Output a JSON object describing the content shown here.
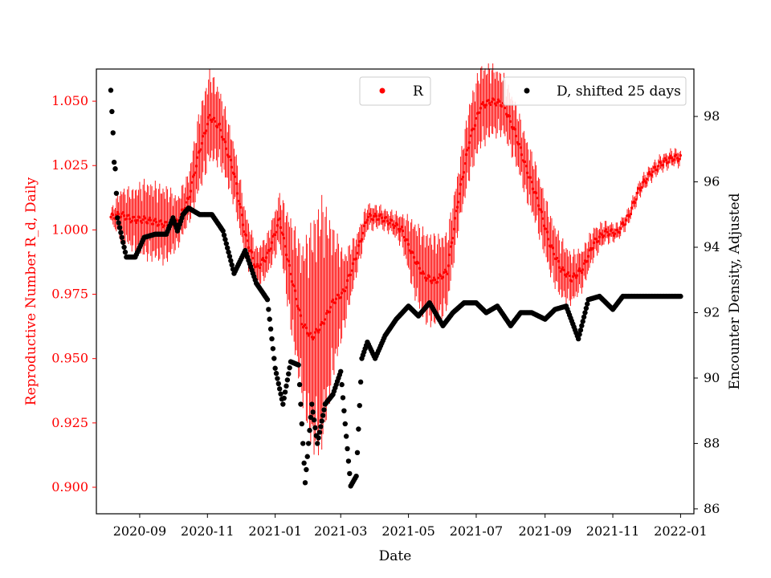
{
  "chart_data": {
    "type": "scatter",
    "title": "",
    "xlabel": "Date",
    "ylabel_left": "Reproductive Number R_d, Daily",
    "ylabel_right": "Encounter Density, Adjusted",
    "x_ticks": [
      "2020-09",
      "2020-11",
      "2021-01",
      "2021-03",
      "2021-05",
      "2021-07",
      "2021-09",
      "2021-11",
      "2022-01"
    ],
    "x_range": [
      "2020-07-24",
      "2022-01-13"
    ],
    "y_left_ticks": [
      "0.900",
      "0.925",
      "0.950",
      "0.975",
      "1.000",
      "1.025",
      "1.050"
    ],
    "y_left_range": [
      0.8897,
      1.0625
    ],
    "y_right_ticks": [
      "86",
      "88",
      "90",
      "92",
      "94",
      "96",
      "98"
    ],
    "y_right_range": [
      85.85,
      99.45
    ],
    "grid": false,
    "colors": {
      "R": "#ff0000",
      "D": "#000000",
      "left_axis": "#ff0000",
      "right_axis": "#000000"
    },
    "series": [
      {
        "name": "R",
        "axis": "left",
        "marker": "point with vertical error bar",
        "color": "#ff0000",
        "x": [
          "2020-08-06",
          "2020-08-15",
          "2020-08-25",
          "2020-09-05",
          "2020-09-15",
          "2020-09-25",
          "2020-10-05",
          "2020-10-15",
          "2020-10-25",
          "2020-11-03",
          "2020-11-12",
          "2020-11-25",
          "2020-12-05",
          "2020-12-15",
          "2020-12-25",
          "2021-01-05",
          "2021-01-15",
          "2021-01-25",
          "2021-02-03",
          "2021-02-12",
          "2021-02-22",
          "2021-03-04",
          "2021-03-15",
          "2021-03-25",
          "2021-04-05",
          "2021-04-15",
          "2021-04-25",
          "2021-05-05",
          "2021-05-15",
          "2021-05-25",
          "2021-06-05",
          "2021-06-15",
          "2021-06-25",
          "2021-07-05",
          "2021-07-15",
          "2021-07-25",
          "2021-08-05",
          "2021-08-15",
          "2021-08-25",
          "2021-09-05",
          "2021-09-15",
          "2021-09-25",
          "2021-10-05",
          "2021-10-15",
          "2021-10-25",
          "2021-11-05",
          "2021-11-15",
          "2021-11-25",
          "2021-12-05",
          "2021-12-15",
          "2021-12-25",
          "2022-01-01"
        ],
        "values": [
          1.005,
          1.006,
          1.004,
          1.004,
          1.003,
          1.002,
          1.003,
          1.012,
          1.031,
          1.044,
          1.04,
          1.022,
          0.998,
          0.985,
          0.99,
          1.004,
          0.983,
          0.964,
          0.958,
          0.963,
          0.972,
          0.976,
          0.99,
          1.005,
          1.005,
          1.003,
          1.0,
          0.99,
          0.982,
          0.98,
          0.984,
          1.012,
          1.035,
          1.048,
          1.05,
          1.049,
          1.038,
          1.024,
          1.012,
          0.995,
          0.985,
          0.981,
          0.985,
          0.995,
          0.999,
          0.999,
          1.005,
          1.016,
          1.022,
          1.026,
          1.028,
          1.028
        ],
        "errors": [
          0.002,
          0.01,
          0.012,
          0.015,
          0.015,
          0.015,
          0.01,
          0.01,
          0.016,
          0.018,
          0.015,
          0.012,
          0.01,
          0.008,
          0.008,
          0.01,
          0.022,
          0.03,
          0.045,
          0.05,
          0.03,
          0.015,
          0.008,
          0.005,
          0.004,
          0.004,
          0.006,
          0.014,
          0.018,
          0.018,
          0.015,
          0.012,
          0.015,
          0.016,
          0.014,
          0.012,
          0.012,
          0.012,
          0.012,
          0.012,
          0.012,
          0.01,
          0.008,
          0.006,
          0.004,
          0.003,
          0.003,
          0.003,
          0.003,
          0.003,
          0.003,
          0.003
        ]
      },
      {
        "name": "D, shifted 25 days",
        "axis": "right",
        "marker": "filled circle",
        "color": "#000000",
        "x": [
          "2020-08-06",
          "2020-08-08",
          "2020-08-09",
          "2020-08-10",
          "2020-08-12",
          "2020-08-20",
          "2020-08-28",
          "2020-09-05",
          "2020-09-15",
          "2020-09-25",
          "2020-10-01",
          "2020-10-05",
          "2020-10-10",
          "2020-10-15",
          "2020-10-25",
          "2020-11-05",
          "2020-11-15",
          "2020-11-25",
          "2020-12-05",
          "2020-12-15",
          "2020-12-25",
          "2021-01-01",
          "2021-01-08",
          "2021-01-15",
          "2021-01-22",
          "2021-01-28",
          "2021-02-03",
          "2021-02-08",
          "2021-02-15",
          "2021-02-22",
          "2021-03-01",
          "2021-03-05",
          "2021-03-10",
          "2021-03-15",
          "2021-03-20",
          "2021-03-25",
          "2021-04-01",
          "2021-04-10",
          "2021-04-20",
          "2021-05-01",
          "2021-05-10",
          "2021-05-20",
          "2021-06-01",
          "2021-06-10",
          "2021-06-20",
          "2021-07-01",
          "2021-07-10",
          "2021-07-20",
          "2021-08-01",
          "2021-08-10",
          "2021-08-20",
          "2021-09-01",
          "2021-09-10",
          "2021-09-20",
          "2021-10-01",
          "2021-10-10",
          "2021-10-20",
          "2021-11-01",
          "2021-11-10",
          "2021-11-20",
          "2021-12-01",
          "2021-12-15",
          "2022-01-01"
        ],
        "values": [
          98.8,
          97.5,
          96.6,
          96.4,
          94.9,
          93.7,
          93.7,
          94.3,
          94.4,
          94.4,
          94.9,
          94.5,
          95.0,
          95.2,
          95.0,
          95.0,
          94.5,
          93.2,
          93.9,
          92.9,
          92.4,
          90.3,
          89.2,
          90.5,
          90.4,
          86.8,
          89.2,
          88.0,
          89.2,
          89.5,
          90.2,
          88.6,
          86.7,
          87.0,
          90.6,
          91.1,
          90.6,
          91.3,
          91.8,
          92.2,
          91.9,
          92.3,
          91.6,
          92.0,
          92.3,
          92.3,
          92.0,
          92.2,
          91.6,
          92.0,
          92.0,
          91.8,
          92.1,
          92.2,
          91.2,
          92.4,
          92.5,
          92.1,
          92.5,
          92.5,
          92.5,
          92.5,
          92.5
        ]
      }
    ],
    "legend": [
      {
        "label": "R",
        "position": "top-center"
      },
      {
        "label": "D, shifted 25 days",
        "position": "top-right"
      }
    ]
  }
}
